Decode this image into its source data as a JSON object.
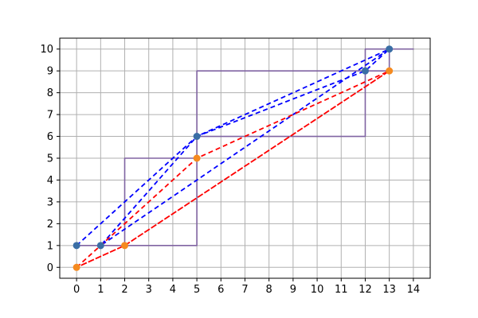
{
  "chart_data": {
    "type": "line",
    "title": "",
    "xlabel": "",
    "ylabel": "",
    "xlim": [
      -0.7,
      14.7
    ],
    "ylim": [
      -0.5,
      10.5
    ],
    "x_ticks": [
      0,
      1,
      2,
      3,
      4,
      5,
      6,
      7,
      8,
      9,
      10,
      11,
      12,
      13,
      14
    ],
    "y_ticks": [
      0,
      1,
      2,
      3,
      4,
      5,
      6,
      7,
      8,
      9,
      10
    ],
    "grid": true,
    "legend": "none",
    "series": [
      {
        "style": "solid",
        "color": "#8064a2",
        "points": [
          [
            0,
            1
          ],
          [
            2,
            1
          ],
          [
            2,
            5
          ],
          [
            5,
            5
          ],
          [
            5,
            1
          ],
          [
            2,
            1
          ],
          [
            2,
            5
          ],
          [
            5,
            5
          ],
          [
            5,
            9
          ],
          [
            13,
            9
          ],
          [
            13,
            10
          ],
          [
            14,
            10
          ],
          [
            12,
            10
          ],
          [
            12,
            6
          ],
          [
            5,
            6
          ],
          [
            5,
            9
          ],
          [
            13,
            9
          ]
        ]
      },
      {
        "style": "dashed",
        "color": "#0000ff",
        "points": [
          [
            0,
            1
          ],
          [
            5,
            6
          ],
          [
            13,
            10
          ],
          [
            1,
            1
          ],
          [
            5,
            6
          ],
          [
            12,
            9
          ],
          [
            13,
            10
          ]
        ]
      },
      {
        "style": "dashed",
        "color": "#ff0000",
        "points": [
          [
            0,
            0
          ],
          [
            5,
            5
          ],
          [
            13,
            9
          ],
          [
            2,
            1
          ],
          [
            0,
            0
          ],
          [
            2,
            1
          ],
          [
            13,
            9
          ]
        ]
      },
      {
        "style": "markers",
        "color": "#3a6ea5",
        "points": [
          [
            0,
            1
          ],
          [
            1,
            1
          ],
          [
            5,
            6
          ],
          [
            12,
            9
          ],
          [
            13,
            10
          ]
        ]
      },
      {
        "style": "markers",
        "color": "#f58a1f",
        "points": [
          [
            0,
            0
          ],
          [
            2,
            1
          ],
          [
            5,
            5
          ],
          [
            13,
            9
          ]
        ]
      }
    ]
  }
}
